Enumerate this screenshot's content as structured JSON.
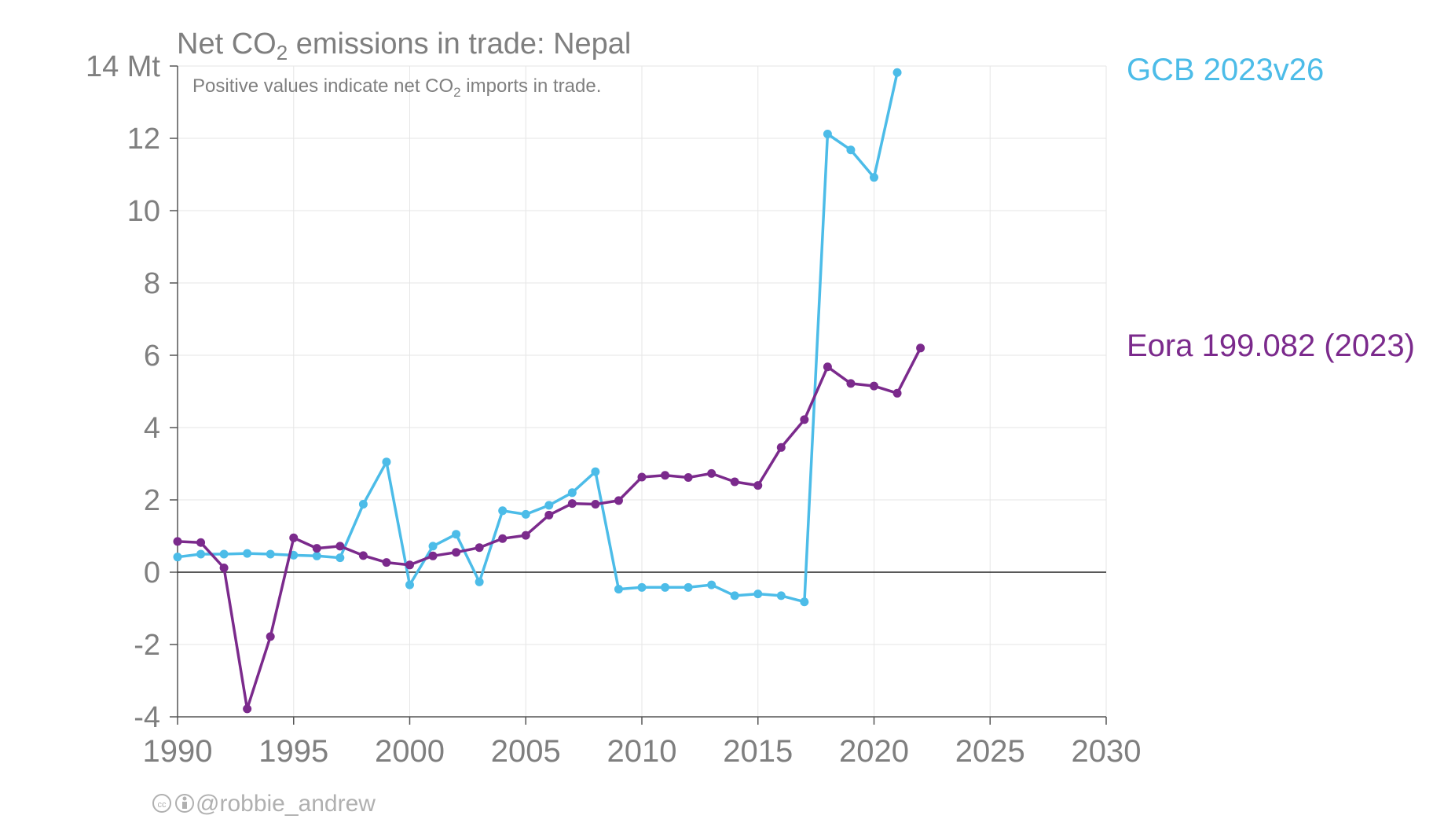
{
  "chart_data": {
    "type": "line",
    "title": {
      "prefix": "Net CO",
      "sub": "2",
      "suffix": " emissions in trade: Nepal"
    },
    "subtitle": {
      "prefix": "Positive values indicate net CO",
      "sub": "2",
      "suffix": " imports in trade."
    },
    "y_unit_label": "14 Mt",
    "ylim": [
      -4,
      14
    ],
    "xlim": [
      1990,
      2030
    ],
    "y_ticks": [
      "-4",
      "-2",
      "0",
      "2",
      "4",
      "6",
      "8",
      "10",
      "12"
    ],
    "x_ticks": [
      "1990",
      "1995",
      "2000",
      "2005",
      "2010",
      "2015",
      "2020",
      "2025",
      "2030"
    ],
    "grid": true,
    "legend_placement": "right",
    "series": [
      {
        "name": "GCB 2023v26",
        "color": "#4cbce8",
        "x": [
          1990,
          1991,
          1992,
          1993,
          1994,
          1995,
          1996,
          1997,
          1998,
          1999,
          2000,
          2001,
          2002,
          2003,
          2004,
          2005,
          2006,
          2007,
          2008,
          2009,
          2010,
          2011,
          2012,
          2013,
          2014,
          2015,
          2016,
          2017,
          2018,
          2019,
          2020,
          2021
        ],
        "y": [
          0.42,
          0.5,
          0.5,
          0.52,
          0.5,
          0.47,
          0.45,
          0.4,
          1.88,
          3.05,
          -0.35,
          0.72,
          1.05,
          -0.27,
          1.7,
          1.6,
          1.85,
          2.2,
          2.78,
          -0.47,
          -0.42,
          -0.42,
          -0.42,
          -0.35,
          -0.65,
          -0.6,
          -0.65,
          -0.82,
          12.12,
          11.68,
          10.92,
          13.82
        ]
      },
      {
        "name": "Eora 199.082 (2023)",
        "color": "#7b2a8c",
        "x": [
          1990,
          1991,
          1992,
          1993,
          1994,
          1995,
          1996,
          1997,
          1998,
          1999,
          2000,
          2001,
          2002,
          2003,
          2004,
          2005,
          2006,
          2007,
          2008,
          2009,
          2010,
          2011,
          2012,
          2013,
          2014,
          2015,
          2016,
          2017,
          2018,
          2019,
          2020,
          2021,
          2022
        ],
        "y": [
          0.85,
          0.82,
          0.12,
          -3.78,
          -1.78,
          0.95,
          0.66,
          0.72,
          0.46,
          0.27,
          0.2,
          0.45,
          0.55,
          0.68,
          0.93,
          1.02,
          1.58,
          1.9,
          1.88,
          1.98,
          2.63,
          2.68,
          2.62,
          2.73,
          2.5,
          2.4,
          3.45,
          4.22,
          5.68,
          5.22,
          5.15,
          4.95,
          6.2
        ]
      }
    ],
    "zero_line": true
  },
  "credit": {
    "cc_icon": "cc-by-icon",
    "handle": "@robbie_andrew"
  }
}
